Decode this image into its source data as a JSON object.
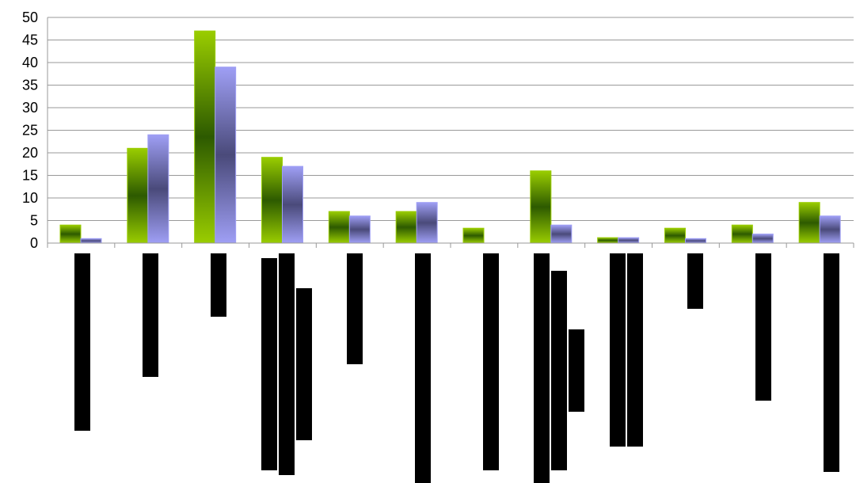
{
  "chart_data": {
    "type": "bar",
    "title": "",
    "xlabel": "",
    "ylabel": "",
    "ylim": [
      0,
      50
    ],
    "yticks": [
      0,
      5,
      10,
      15,
      20,
      25,
      30,
      35,
      40,
      45,
      50
    ],
    "grid": true,
    "legend": "none",
    "category_count": 12,
    "category_labels_obscured": true,
    "series": [
      {
        "values": [
          4,
          21,
          47,
          19,
          7,
          7,
          3.3,
          16,
          1.2,
          3.3,
          4,
          9
        ]
      },
      {
        "values": [
          1,
          24,
          39,
          17,
          6,
          9,
          0,
          4,
          1.2,
          1,
          2,
          6
        ]
      }
    ],
    "colors": {
      "series1_light": "#9acd00",
      "series1_dark": "#2d5a00",
      "series2_light": "#9f9ff5",
      "series2_dark": "#4a4a7a",
      "grid": "#999999",
      "axis": "#999999",
      "redaction": "#000000"
    }
  }
}
